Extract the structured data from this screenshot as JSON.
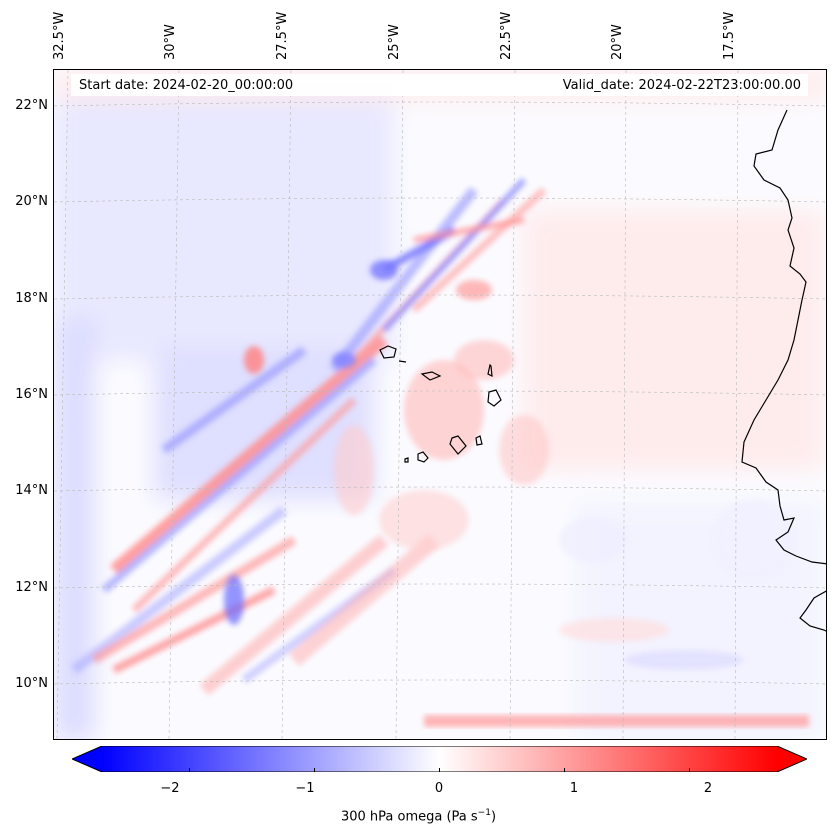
{
  "map": {
    "start_date": "Start date: 2024-02-20_00:00:00",
    "valid_date": "Valid_date: 2024-02-22T23:00:00.00",
    "lon_labels": [
      "32.5°W",
      "30°W",
      "27.5°W",
      "25°W",
      "22.5°W",
      "20°W",
      "17.5°W"
    ],
    "lat_labels": [
      "22°N",
      "20°N",
      "18°N",
      "16°N",
      "14°N",
      "12°N",
      "10°N"
    ],
    "extent": {
      "lon_min": -32.9,
      "lon_max": -15.3,
      "lat_min": 8.9,
      "lat_max": 22.8
    },
    "gridlines": true,
    "coastline_color": "#000000"
  },
  "colorbar": {
    "label": "300 hPa omega (Pa s",
    "label_sup": "−1",
    "label_close": ")",
    "ticks": [
      "−2",
      "−1",
      "0",
      "1",
      "2"
    ],
    "tick_values": [
      -2,
      -1,
      0,
      1,
      2
    ],
    "range": [
      -2.7,
      2.7
    ],
    "extend": "both",
    "colormap": "bwr",
    "low_color": "#0000ff",
    "mid_color": "#ffffff",
    "high_color": "#ff0000"
  }
}
